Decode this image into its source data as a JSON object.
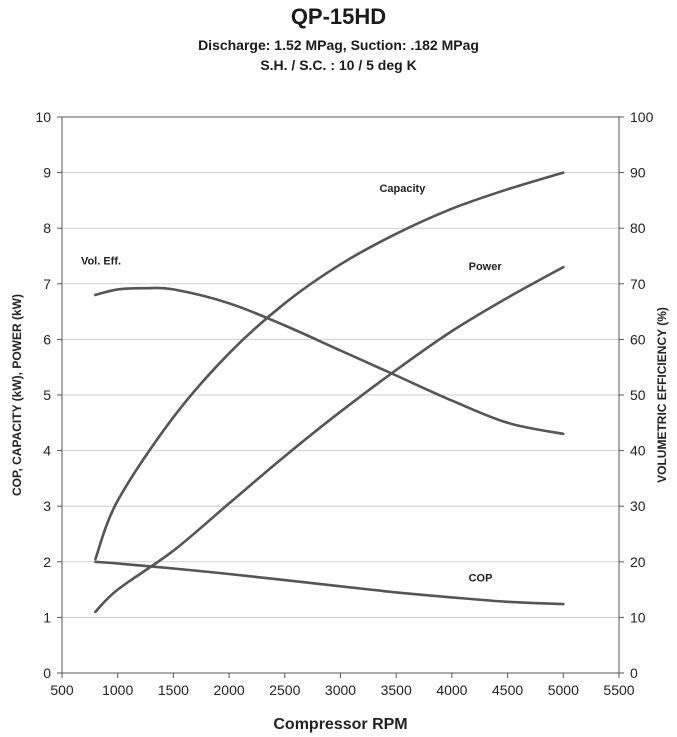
{
  "chart_data": {
    "type": "line",
    "title": "QP-15HD",
    "subtitle_lines": [
      "Discharge: 1.52 MPag, Suction: .182 MPag",
      "S.H. / S.C. : 10 / 5 deg K"
    ],
    "xlabel": "Compressor RPM",
    "ylabel": "COP, CAPACITY (kW), POWER (kW)",
    "y2label": "VOLUMETRIC EFFICIENCY (%)",
    "xlim": [
      500,
      5500
    ],
    "ylim": [
      0,
      10
    ],
    "y2lim": [
      0,
      100
    ],
    "xticks": [
      500,
      1000,
      1500,
      2000,
      2500,
      3000,
      3500,
      4000,
      4500,
      5000,
      5500
    ],
    "yticks": [
      0,
      1,
      2,
      3,
      4,
      5,
      6,
      7,
      8,
      9,
      10
    ],
    "y2ticks": [
      0,
      10,
      20,
      30,
      40,
      50,
      60,
      70,
      80,
      90,
      100
    ],
    "grid": "horizontal",
    "series": [
      {
        "name": "Capacity",
        "axis": "left",
        "x": [
          800,
          1000,
          1500,
          2000,
          2500,
          3000,
          3500,
          4000,
          4500,
          5000
        ],
        "values": [
          2.05,
          3.1,
          4.6,
          5.75,
          6.65,
          7.35,
          7.9,
          8.35,
          8.7,
          9.0
        ]
      },
      {
        "name": "Power",
        "axis": "left",
        "x": [
          800,
          1000,
          1500,
          2000,
          2500,
          3000,
          3500,
          4000,
          4500,
          5000
        ],
        "values": [
          1.1,
          1.5,
          2.2,
          3.05,
          3.9,
          4.7,
          5.45,
          6.15,
          6.75,
          7.3
        ]
      },
      {
        "name": "COP",
        "axis": "left",
        "x": [
          800,
          1000,
          1500,
          2000,
          2500,
          3000,
          3500,
          4000,
          4500,
          5000
        ],
        "values": [
          2.0,
          1.97,
          1.88,
          1.78,
          1.67,
          1.56,
          1.45,
          1.36,
          1.28,
          1.24
        ]
      },
      {
        "name": "Vol. Eff.",
        "axis": "right",
        "x": [
          800,
          1000,
          1250,
          1500,
          2000,
          2500,
          3000,
          3500,
          4000,
          4500,
          5000
        ],
        "values": [
          68,
          69,
          69.2,
          69,
          66.5,
          62.5,
          58,
          53.5,
          49,
          45,
          43
        ]
      }
    ],
    "annotations": [
      {
        "text": "Capacity",
        "x": 3350,
        "y": 8.65
      },
      {
        "text": "Power",
        "x": 4150,
        "y": 7.25
      },
      {
        "text": "Vol. Eff.",
        "x": 670,
        "y": 7.35
      },
      {
        "text": "COP",
        "x": 4150,
        "y": 1.65
      }
    ]
  }
}
